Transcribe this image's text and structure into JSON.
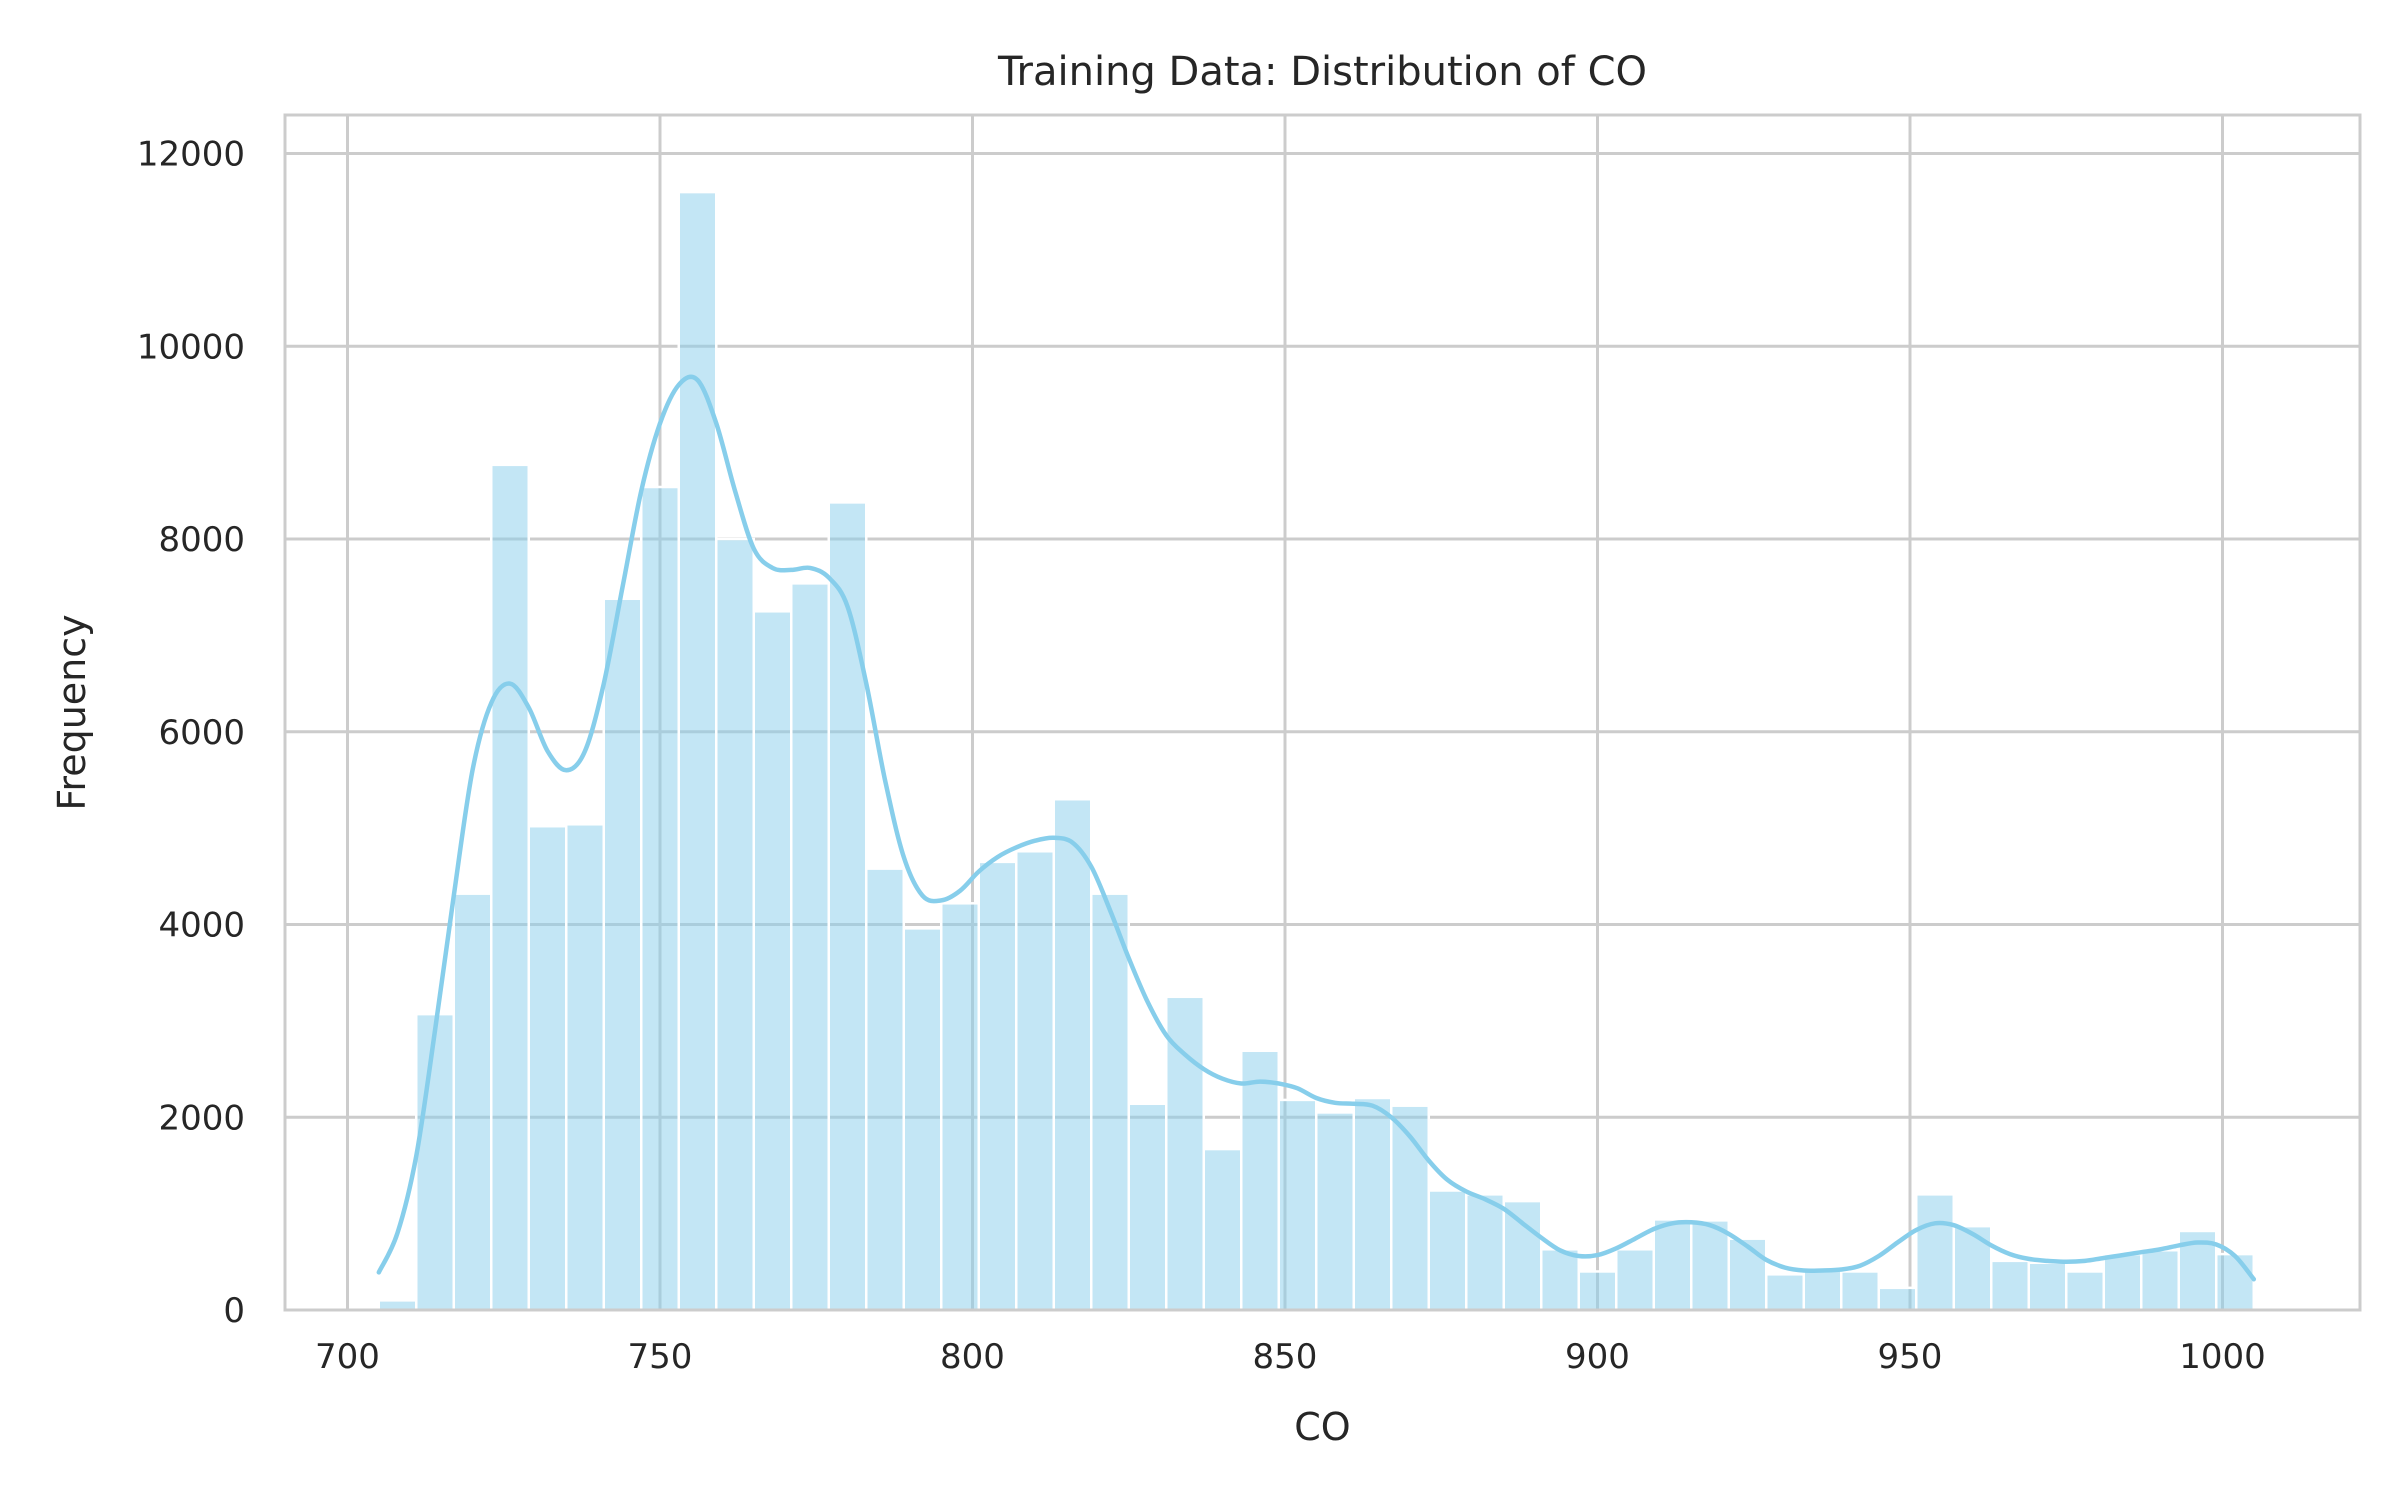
{
  "chart_data": {
    "type": "bar",
    "title": "Training Data: Distribution of CO",
    "xlabel": "CO",
    "ylabel": "Frequency",
    "xlim": [
      690,
      1022
    ],
    "ylim": [
      0,
      12400
    ],
    "x_ticks": [
      700,
      750,
      800,
      850,
      900,
      950,
      1000
    ],
    "y_ticks": [
      0,
      2000,
      4000,
      6000,
      8000,
      10000,
      12000
    ],
    "grid": true,
    "bin_start": 705,
    "bin_width": 6.0,
    "bar_color": "#87ceeb",
    "bar_opacity": 0.5,
    "kde_color": "#87ceeb",
    "counts": [
      100,
      3070,
      4320,
      8770,
      5020,
      5040,
      7380,
      8540,
      11600,
      8000,
      7250,
      7540,
      8380,
      4580,
      3960,
      4220,
      4650,
      4760,
      5300,
      4320,
      2140,
      3250,
      1670,
      2690,
      2180,
      2050,
      2200,
      2120,
      1240,
      1200,
      1130,
      630,
      400,
      630,
      940,
      930,
      740,
      370,
      420,
      400,
      230,
      1200,
      870,
      510,
      490,
      400,
      580,
      620,
      820,
      580
    ],
    "kde": {
      "x": [
        705,
        708,
        711,
        714,
        717,
        720,
        723,
        726,
        729,
        732,
        735,
        738,
        741,
        744,
        747,
        750,
        753,
        756,
        759,
        762,
        765,
        768,
        771,
        774,
        777,
        780,
        783,
        786,
        789,
        792,
        795,
        798,
        801,
        804,
        807,
        810,
        813,
        816,
        819,
        822,
        825,
        828,
        831,
        834,
        837,
        840,
        843,
        846,
        849,
        852,
        855,
        858,
        861,
        864,
        867,
        870,
        873,
        876,
        879,
        882,
        885,
        888,
        891,
        894,
        897,
        900,
        903,
        906,
        909,
        912,
        915,
        918,
        921,
        924,
        927,
        930,
        933,
        936,
        939,
        942,
        945,
        948,
        951,
        954,
        957,
        960,
        963,
        966,
        969,
        972,
        975,
        978,
        981,
        984,
        987,
        990,
        993,
        996,
        999,
        1002,
        1005
      ],
      "y": [
        390,
        800,
        1600,
        2900,
        4300,
        5600,
        6300,
        6500,
        6250,
        5800,
        5600,
        5800,
        6500,
        7500,
        8500,
        9200,
        9600,
        9650,
        9200,
        8500,
        7900,
        7700,
        7680,
        7700,
        7600,
        7300,
        6500,
        5500,
        4700,
        4300,
        4250,
        4350,
        4550,
        4700,
        4800,
        4870,
        4900,
        4850,
        4600,
        4150,
        3650,
        3200,
        2850,
        2650,
        2500,
        2400,
        2350,
        2370,
        2350,
        2300,
        2200,
        2150,
        2140,
        2120,
        2000,
        1800,
        1550,
        1350,
        1230,
        1150,
        1050,
        900,
        750,
        620,
        560,
        570,
        640,
        740,
        840,
        900,
        910,
        880,
        790,
        660,
        520,
        440,
        410,
        410,
        420,
        460,
        560,
        700,
        830,
        900,
        880,
        790,
        670,
        580,
        530,
        510,
        500,
        510,
        540,
        570,
        600,
        630,
        670,
        700,
        680,
        560,
        320
      ]
    }
  }
}
